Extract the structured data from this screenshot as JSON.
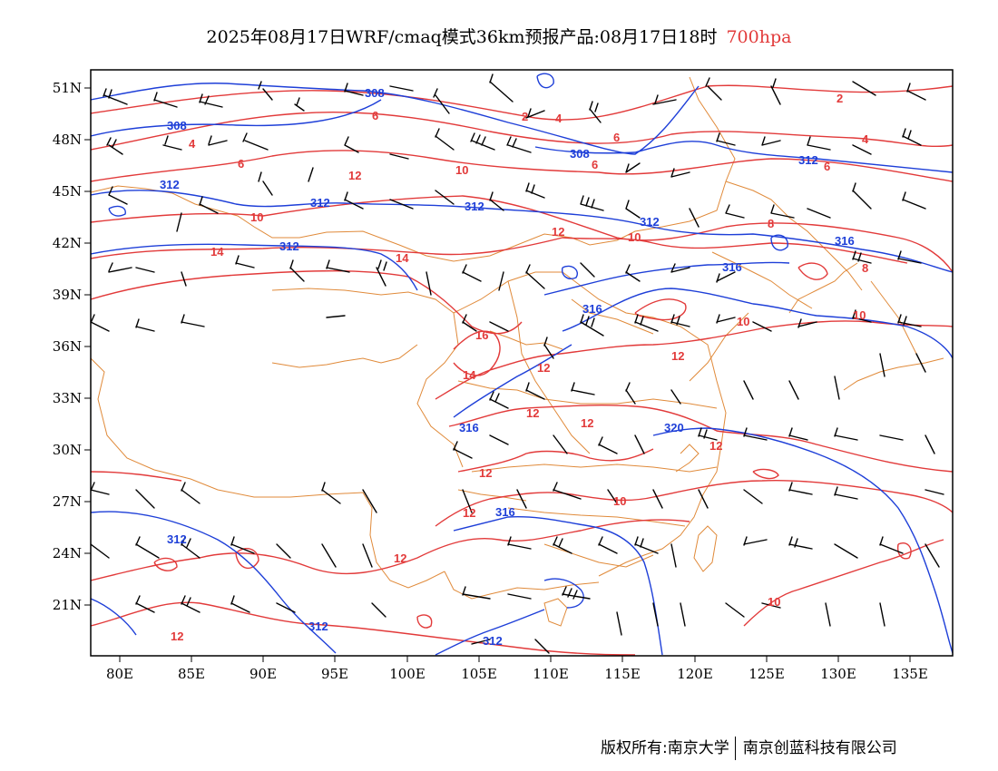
{
  "title": {
    "main": "2025年08月17日WRF/cmaq模式36km预报产品:08月17日18时",
    "level": "700hpa",
    "level_color": "#e23a3a"
  },
  "map": {
    "lon_range": [
      78,
      138
    ],
    "lat_range": [
      18.5,
      52
    ],
    "x_ticks": [
      "80E",
      "85E",
      "90E",
      "95E",
      "100E",
      "105E",
      "110E",
      "115E",
      "120E",
      "125E",
      "130E",
      "135E"
    ],
    "y_ticks": [
      "51N",
      "48N",
      "45N",
      "42N",
      "39N",
      "36N",
      "33N",
      "30N",
      "27N",
      "24N",
      "21N"
    ],
    "colors": {
      "geopotential_height": "#1e3fd8",
      "temperature": "#e23a3a",
      "boundaries": "#e08a3a",
      "wind_barbs": "#000000"
    },
    "height_labels": [
      "308",
      "308",
      "308",
      "312",
      "312",
      "312",
      "312",
      "312",
      "312",
      "316",
      "316",
      "316",
      "316",
      "316",
      "320",
      "312",
      "312",
      "312"
    ],
    "temperature_labels": [
      "2",
      "2",
      "4",
      "4",
      "4",
      "6",
      "6",
      "6",
      "6",
      "6",
      "8",
      "8",
      "10",
      "10",
      "10",
      "10",
      "10",
      "10",
      "12",
      "12",
      "12",
      "12",
      "12",
      "12",
      "12",
      "12",
      "12",
      "12",
      "14",
      "14",
      "14",
      "16",
      "10",
      "12"
    ]
  },
  "copyright": {
    "left": "版权所有:南京大学",
    "right": "南京创蓝科技有限公司"
  }
}
